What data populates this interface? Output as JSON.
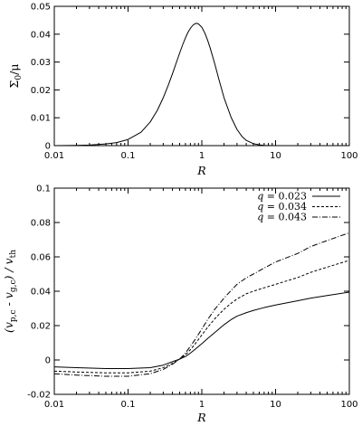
{
  "chart_data": [
    {
      "type": "line",
      "xlabel": "R",
      "ylabel_main": "Σ",
      "ylabel_sub": "0",
      "ylabel_tail": "/μ",
      "xscale": "log",
      "xlim": [
        0.01,
        100
      ],
      "ylim": [
        0,
        0.05
      ],
      "x_ticks": [
        0.01,
        0.1,
        1,
        10,
        100
      ],
      "x_tick_labels": [
        "0.01",
        "0.1",
        "1",
        "10",
        "100"
      ],
      "y_ticks": [
        0,
        0.01,
        0.02,
        0.03,
        0.04,
        0.05
      ],
      "y_tick_labels": [
        "0",
        "0.01",
        "0.02",
        "0.03",
        "0.04",
        "0.05"
      ],
      "grid": false,
      "series": [
        {
          "style": "solid",
          "x": [
            0.01,
            0.02,
            0.03,
            0.05,
            0.07,
            0.1,
            0.15,
            0.2,
            0.25,
            0.3,
            0.35,
            0.4,
            0.45,
            0.5,
            0.55,
            0.6,
            0.65,
            0.7,
            0.75,
            0.8,
            0.85,
            0.9,
            1.0,
            1.1,
            1.2,
            1.3,
            1.5,
            1.7,
            2.0,
            2.5,
            3.0,
            3.5,
            4.0,
            5.0,
            6.0,
            7.0,
            8.0,
            10,
            15,
            20
          ],
          "y": [
            0,
            0.0001,
            0.0002,
            0.0006,
            0.0011,
            0.0022,
            0.0048,
            0.0085,
            0.0127,
            0.0172,
            0.0216,
            0.0258,
            0.0297,
            0.0332,
            0.0362,
            0.0387,
            0.0407,
            0.0421,
            0.0431,
            0.0437,
            0.0439,
            0.0437,
            0.0425,
            0.0404,
            0.0378,
            0.035,
            0.0293,
            0.0239,
            0.0172,
            0.0101,
            0.0058,
            0.0033,
            0.0019,
            0.0007,
            0.0003,
            0.0001,
            5e-05,
            0,
            0,
            0
          ]
        }
      ]
    },
    {
      "type": "line",
      "xlabel": "R",
      "ylabel_parts": [
        "(v",
        "p,c",
        " - v",
        "g,c",
        ") / v",
        "th"
      ],
      "xscale": "log",
      "xlim": [
        0.01,
        100
      ],
      "ylim": [
        -0.02,
        0.1
      ],
      "x_ticks": [
        0.01,
        0.1,
        1,
        10,
        100
      ],
      "x_tick_labels": [
        "0.01",
        "0.1",
        "1",
        "10",
        "100"
      ],
      "y_ticks": [
        -0.02,
        0,
        0.02,
        0.04,
        0.06,
        0.08,
        0.1
      ],
      "y_tick_labels": [
        "-0.02",
        "0",
        "0.02",
        "0.04",
        "0.06",
        "0.08",
        "0.1"
      ],
      "grid": false,
      "legend_position": "top-right",
      "series": [
        {
          "name_var": "q",
          "name_value": " = 0.023",
          "style": "solid",
          "x": [
            0.01,
            0.02,
            0.05,
            0.1,
            0.2,
            0.3,
            0.4,
            0.5,
            0.6,
            0.7,
            0.8,
            1.0,
            1.2,
            1.5,
            2.0,
            2.5,
            3,
            4,
            5,
            7,
            10,
            20,
            30,
            50,
            100
          ],
          "y": [
            -0.004,
            -0.0045,
            -0.005,
            -0.005,
            -0.0045,
            -0.003,
            -0.001,
            0.0005,
            0.002,
            0.004,
            0.006,
            0.0095,
            0.0125,
            0.016,
            0.0205,
            0.0235,
            0.0255,
            0.0275,
            0.0288,
            0.0305,
            0.032,
            0.0345,
            0.036,
            0.0375,
            0.0395
          ]
        },
        {
          "name_var": "q",
          "name_value": " = 0.034",
          "style": "dashed",
          "x": [
            0.01,
            0.02,
            0.05,
            0.1,
            0.2,
            0.3,
            0.4,
            0.5,
            0.6,
            0.7,
            0.8,
            1.0,
            1.2,
            1.5,
            2.0,
            2.5,
            3,
            4,
            5,
            7,
            10,
            20,
            30,
            50,
            100
          ],
          "y": [
            -0.0065,
            -0.007,
            -0.0075,
            -0.0075,
            -0.0065,
            -0.0045,
            -0.002,
            0.0005,
            0.003,
            0.006,
            0.009,
            0.0145,
            0.019,
            0.024,
            0.0295,
            0.033,
            0.0355,
            0.0385,
            0.04,
            0.042,
            0.044,
            0.048,
            0.051,
            0.054,
            0.058
          ]
        },
        {
          "name_var": "q",
          "name_value": " = 0.043",
          "style": "dash-dot",
          "x": [
            0.01,
            0.02,
            0.05,
            0.1,
            0.2,
            0.3,
            0.4,
            0.5,
            0.6,
            0.7,
            0.8,
            1.0,
            1.2,
            1.5,
            2.0,
            2.5,
            3,
            4,
            5,
            7,
            10,
            20,
            30,
            50,
            100
          ],
          "y": [
            -0.008,
            -0.0088,
            -0.0095,
            -0.0095,
            -0.008,
            -0.0055,
            -0.0025,
            0.0005,
            0.004,
            0.008,
            0.0115,
            0.018,
            0.0235,
            0.0295,
            0.036,
            0.0405,
            0.044,
            0.0478,
            0.05,
            0.0535,
            0.057,
            0.062,
            0.066,
            0.0695,
            0.074
          ]
        }
      ]
    }
  ]
}
